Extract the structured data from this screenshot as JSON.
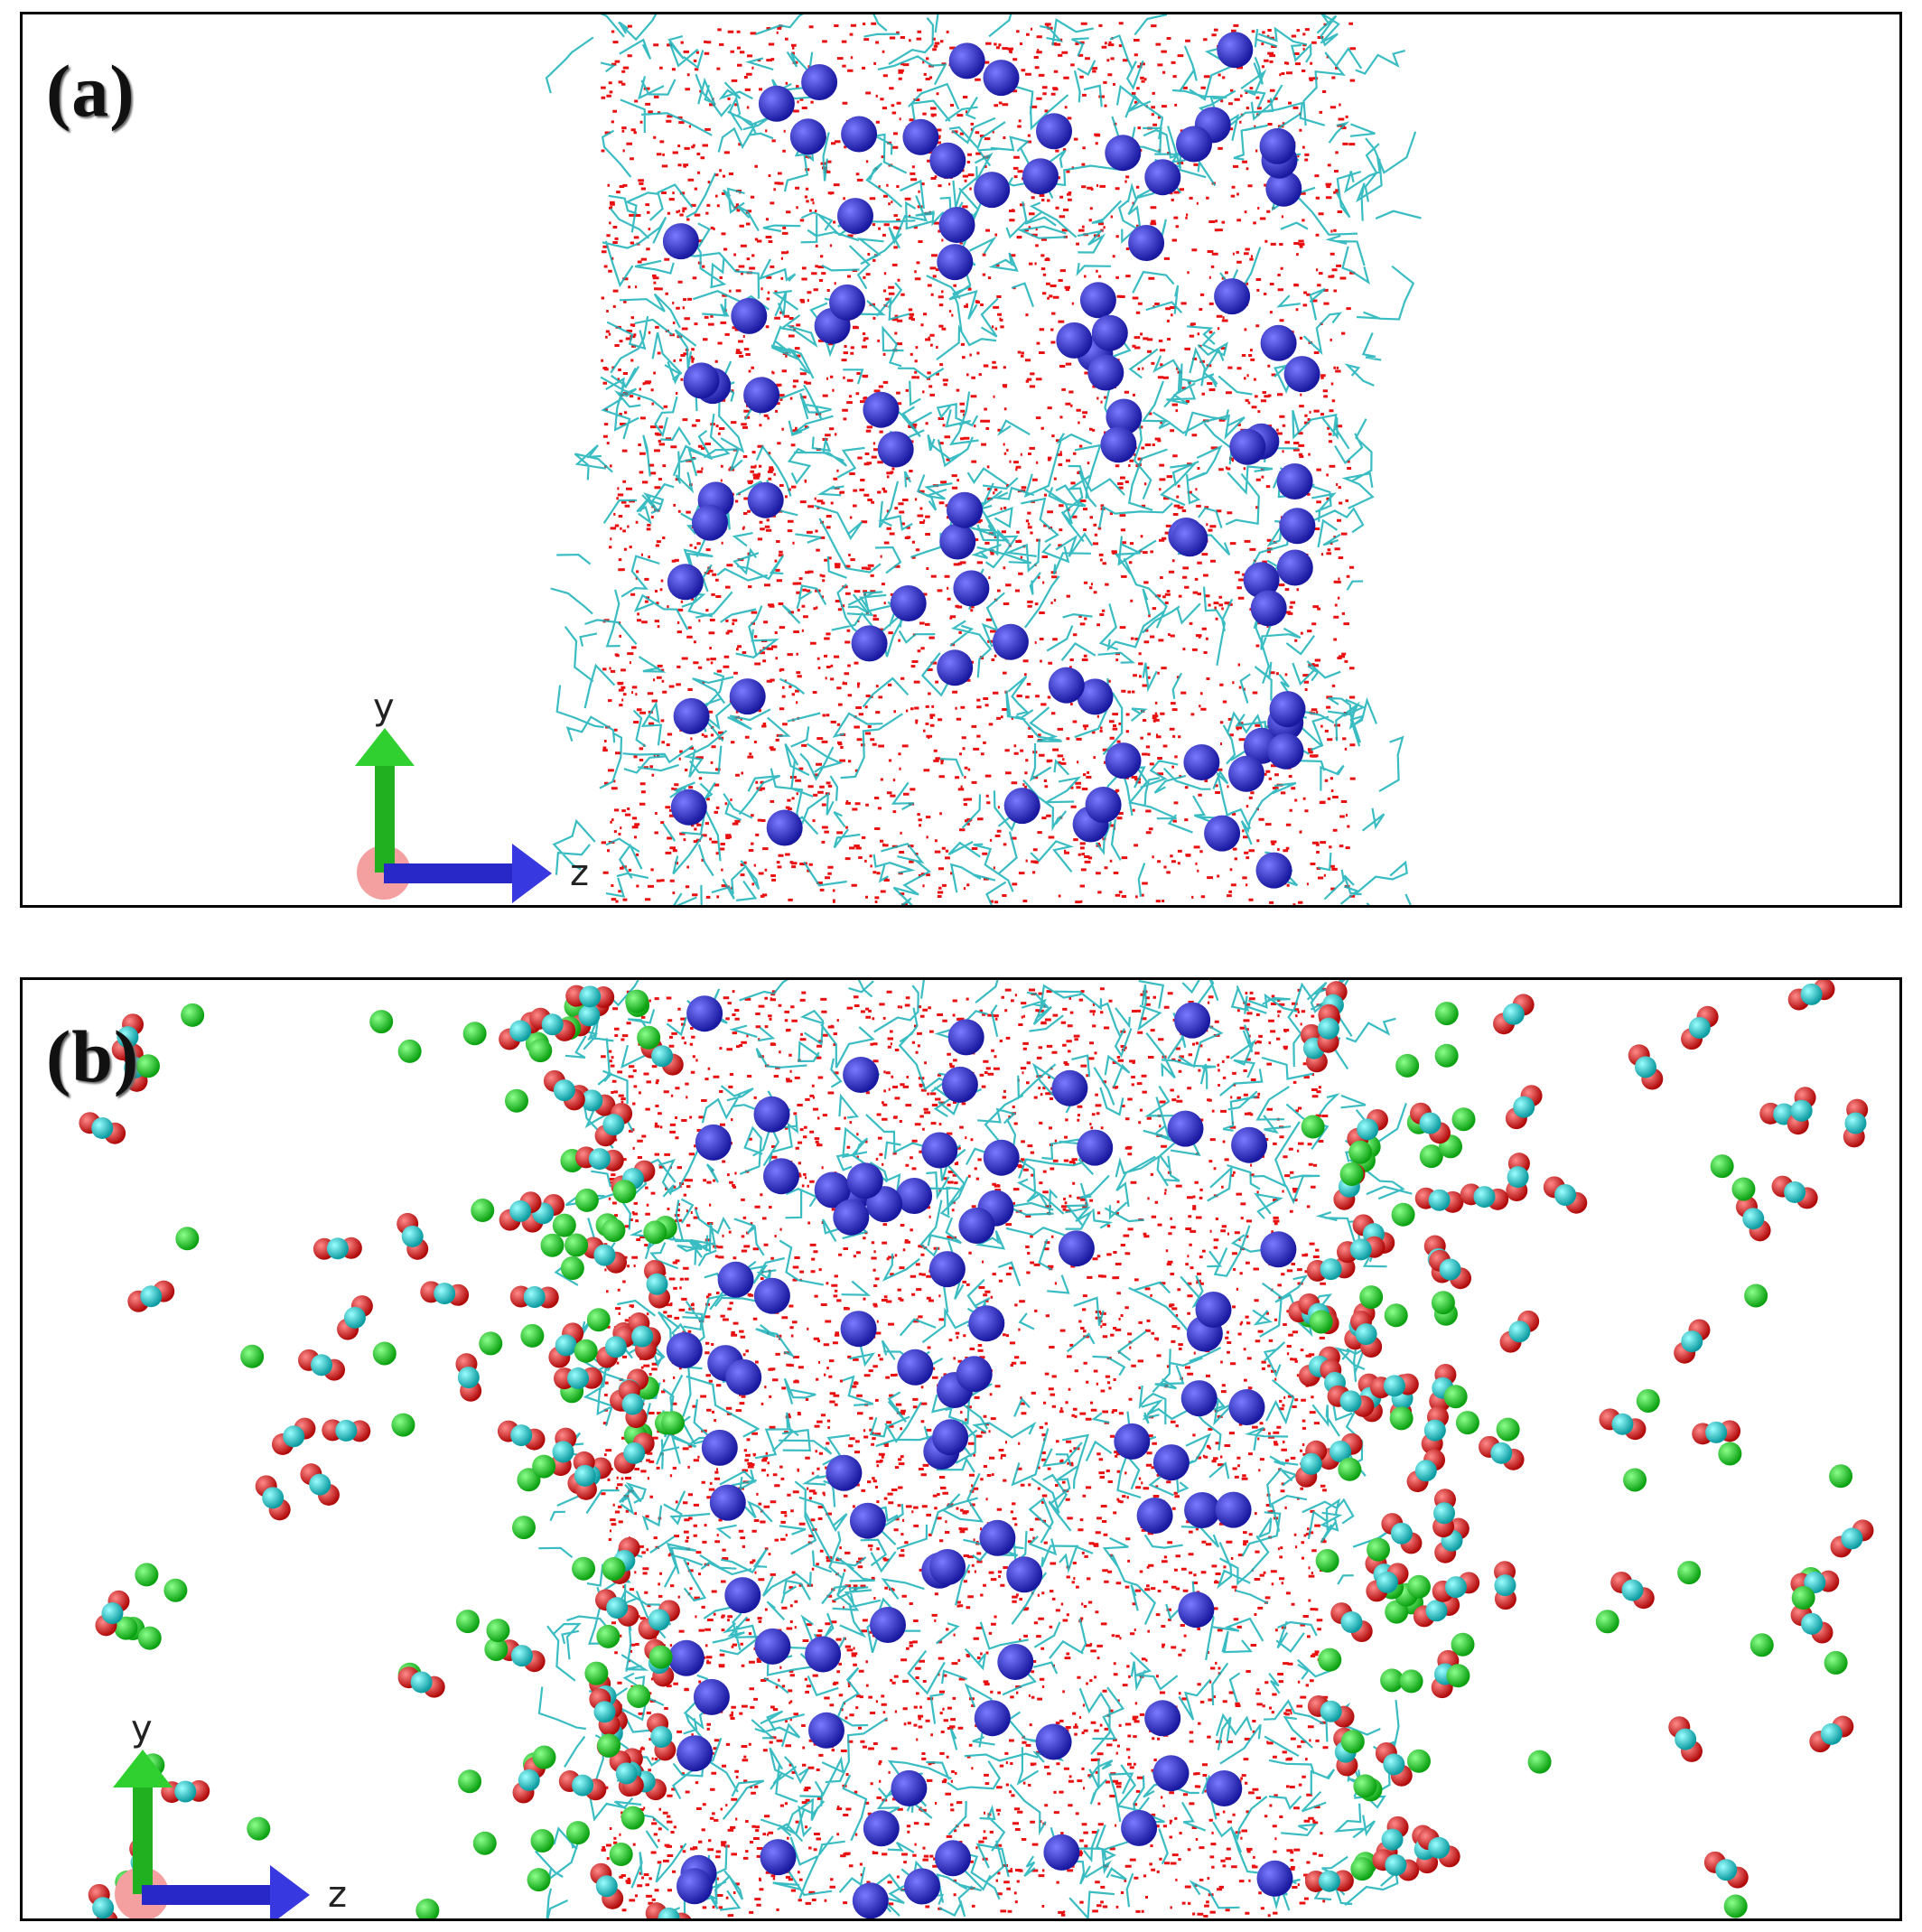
{
  "panels": [
    {
      "label": "(a)",
      "axes": {
        "vertical": "y",
        "horizontal": "z"
      }
    },
    {
      "label": "(b)",
      "axes": {
        "vertical": "y",
        "horizontal": "z"
      }
    }
  ],
  "colors": {
    "water": "#e81010",
    "polymer_stick": "#18b0b8",
    "ion_sphere": "#2a2ad0",
    "gas_green": "#12d020",
    "gas_red": "#e01818",
    "gas_cyan": "#18c0c8",
    "axis_y": "#20c020",
    "axis_z": "#2828d8",
    "axis_x_origin": "#f09090"
  },
  "icons": [
    "y-axis-arrow-icon",
    "z-axis-arrow-icon",
    "origin-sphere-icon"
  ]
}
